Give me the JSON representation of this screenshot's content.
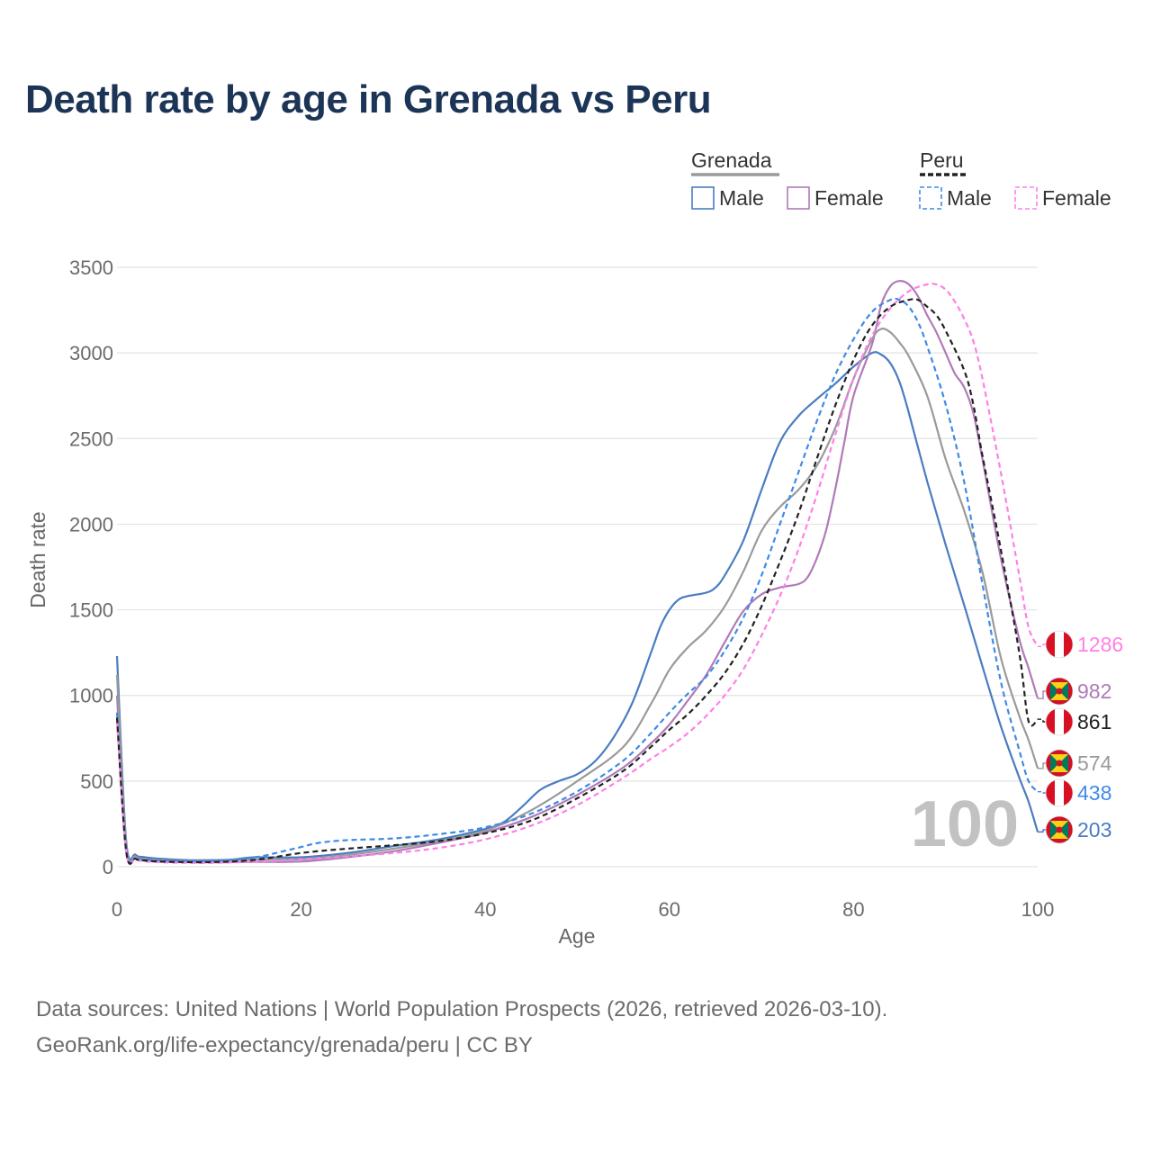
{
  "title": "Death rate by age in Grenada vs Peru",
  "footer": {
    "line1": "Data sources: United Nations | World Population Prospects (2026, retrieved 2026-03-10).",
    "line2": "GeoRank.org/life-expectancy/grenada/peru | CC BY"
  },
  "watermark": "100",
  "legend": {
    "groups": [
      {
        "label": "Grenada",
        "underline": "#9a9a9a",
        "dashed": false
      },
      {
        "label": "Peru",
        "underline": "#222222",
        "dashed": true
      }
    ],
    "entries": [
      {
        "label": "Male",
        "color": "#4a7cc2",
        "dashed": false
      },
      {
        "label": "Female",
        "color": "#b07ab8",
        "dashed": false
      },
      {
        "label": "Male",
        "color": "#3f8ae8",
        "dashed": true
      },
      {
        "label": "Female",
        "color": "#ff7fe8",
        "dashed": true
      }
    ]
  },
  "chart_data": {
    "type": "line",
    "xlabel": "Age",
    "ylabel": "Death rate",
    "xlim": [
      0,
      100
    ],
    "ylim": [
      0,
      3500
    ],
    "xticks": [
      0,
      20,
      40,
      60,
      80,
      100
    ],
    "yticks": [
      0,
      500,
      1000,
      1500,
      2000,
      2500,
      3000,
      3500
    ],
    "grid": true,
    "series": [
      {
        "name": "Grenada Male",
        "color": "#4a7cc2",
        "dashed": false,
        "end_label": "203",
        "flag": "grenada",
        "points": [
          [
            0,
            1230
          ],
          [
            1,
            150
          ],
          [
            2,
            70
          ],
          [
            3,
            55
          ],
          [
            5,
            45
          ],
          [
            8,
            38
          ],
          [
            12,
            40
          ],
          [
            15,
            55
          ],
          [
            20,
            55
          ],
          [
            25,
            80
          ],
          [
            30,
            120
          ],
          [
            35,
            160
          ],
          [
            40,
            220
          ],
          [
            42,
            260
          ],
          [
            44,
            350
          ],
          [
            46,
            450
          ],
          [
            48,
            500
          ],
          [
            50,
            540
          ],
          [
            52,
            620
          ],
          [
            54,
            760
          ],
          [
            56,
            960
          ],
          [
            58,
            1250
          ],
          [
            59,
            1400
          ],
          [
            60,
            1500
          ],
          [
            61,
            1560
          ],
          [
            62,
            1580
          ],
          [
            64,
            1600
          ],
          [
            65,
            1630
          ],
          [
            66,
            1700
          ],
          [
            68,
            1900
          ],
          [
            70,
            2200
          ],
          [
            72,
            2480
          ],
          [
            74,
            2630
          ],
          [
            76,
            2730
          ],
          [
            78,
            2820
          ],
          [
            80,
            2920
          ],
          [
            82,
            3000
          ],
          [
            83,
            2990
          ],
          [
            84,
            2940
          ],
          [
            85,
            2830
          ],
          [
            86,
            2650
          ],
          [
            88,
            2250
          ],
          [
            90,
            1880
          ],
          [
            92,
            1530
          ],
          [
            94,
            1170
          ],
          [
            96,
            820
          ],
          [
            98,
            520
          ],
          [
            99,
            380
          ],
          [
            100,
            203
          ]
        ]
      },
      {
        "name": "Grenada Female",
        "color": "#b07ab8",
        "dashed": false,
        "end_label": "982",
        "flag": "grenada",
        "points": [
          [
            0,
            1000
          ],
          [
            1,
            100
          ],
          [
            2,
            50
          ],
          [
            3,
            35
          ],
          [
            5,
            28
          ],
          [
            10,
            25
          ],
          [
            15,
            28
          ],
          [
            20,
            30
          ],
          [
            25,
            55
          ],
          [
            30,
            90
          ],
          [
            35,
            140
          ],
          [
            40,
            200
          ],
          [
            45,
            290
          ],
          [
            50,
            420
          ],
          [
            55,
            580
          ],
          [
            58,
            720
          ],
          [
            60,
            830
          ],
          [
            62,
            970
          ],
          [
            64,
            1120
          ],
          [
            66,
            1310
          ],
          [
            68,
            1490
          ],
          [
            70,
            1590
          ],
          [
            72,
            1630
          ],
          [
            74,
            1650
          ],
          [
            75,
            1690
          ],
          [
            76,
            1800
          ],
          [
            77,
            1960
          ],
          [
            78,
            2200
          ],
          [
            79,
            2480
          ],
          [
            80,
            2750
          ],
          [
            82,
            3050
          ],
          [
            83,
            3280
          ],
          [
            84,
            3390
          ],
          [
            85,
            3420
          ],
          [
            86,
            3400
          ],
          [
            87,
            3330
          ],
          [
            88,
            3220
          ],
          [
            89,
            3120
          ],
          [
            90,
            3000
          ],
          [
            91,
            2880
          ],
          [
            92,
            2800
          ],
          [
            93,
            2650
          ],
          [
            94,
            2380
          ],
          [
            96,
            1800
          ],
          [
            98,
            1330
          ],
          [
            99,
            1160
          ],
          [
            100,
            982
          ]
        ]
      },
      {
        "name": "Grenada Total",
        "color": "#9a9a9a",
        "dashed": false,
        "end_label": "574",
        "flag": "grenada",
        "points": [
          [
            0,
            1120
          ],
          [
            1,
            125
          ],
          [
            2,
            60
          ],
          [
            3,
            45
          ],
          [
            5,
            37
          ],
          [
            10,
            32
          ],
          [
            15,
            42
          ],
          [
            20,
            43
          ],
          [
            25,
            68
          ],
          [
            30,
            105
          ],
          [
            35,
            150
          ],
          [
            40,
            210
          ],
          [
            45,
            330
          ],
          [
            50,
            500
          ],
          [
            55,
            700
          ],
          [
            58,
            950
          ],
          [
            60,
            1150
          ],
          [
            62,
            1280
          ],
          [
            64,
            1380
          ],
          [
            66,
            1520
          ],
          [
            68,
            1720
          ],
          [
            70,
            1960
          ],
          [
            72,
            2100
          ],
          [
            74,
            2200
          ],
          [
            76,
            2340
          ],
          [
            78,
            2560
          ],
          [
            80,
            2850
          ],
          [
            82,
            3080
          ],
          [
            83,
            3140
          ],
          [
            84,
            3120
          ],
          [
            85,
            3060
          ],
          [
            86,
            2980
          ],
          [
            88,
            2750
          ],
          [
            90,
            2380
          ],
          [
            92,
            2080
          ],
          [
            94,
            1720
          ],
          [
            96,
            1220
          ],
          [
            98,
            880
          ],
          [
            99,
            740
          ],
          [
            100,
            574
          ]
        ]
      },
      {
        "name": "Peru Male",
        "color": "#3f8ae8",
        "dashed": true,
        "end_label": "438",
        "flag": "peru",
        "points": [
          [
            0,
            900
          ],
          [
            1,
            95
          ],
          [
            2,
            50
          ],
          [
            3,
            42
          ],
          [
            5,
            35
          ],
          [
            10,
            32
          ],
          [
            15,
            55
          ],
          [
            18,
            90
          ],
          [
            20,
            115
          ],
          [
            22,
            140
          ],
          [
            25,
            155
          ],
          [
            30,
            165
          ],
          [
            35,
            190
          ],
          [
            40,
            230
          ],
          [
            45,
            310
          ],
          [
            50,
            440
          ],
          [
            55,
            620
          ],
          [
            58,
            780
          ],
          [
            60,
            900
          ],
          [
            62,
            1010
          ],
          [
            64,
            1110
          ],
          [
            66,
            1260
          ],
          [
            68,
            1450
          ],
          [
            70,
            1700
          ],
          [
            72,
            2000
          ],
          [
            74,
            2300
          ],
          [
            76,
            2600
          ],
          [
            78,
            2870
          ],
          [
            80,
            3080
          ],
          [
            82,
            3240
          ],
          [
            84,
            3310
          ],
          [
            85,
            3310
          ],
          [
            86,
            3270
          ],
          [
            87,
            3180
          ],
          [
            88,
            3040
          ],
          [
            90,
            2700
          ],
          [
            92,
            2250
          ],
          [
            94,
            1650
          ],
          [
            96,
            1080
          ],
          [
            98,
            680
          ],
          [
            99,
            500
          ],
          [
            100,
            438
          ]
        ]
      },
      {
        "name": "Peru Female",
        "color": "#ff7fe8",
        "dashed": true,
        "end_label": "1286",
        "flag": "peru",
        "points": [
          [
            0,
            850
          ],
          [
            1,
            85
          ],
          [
            2,
            42
          ],
          [
            3,
            32
          ],
          [
            5,
            25
          ],
          [
            10,
            22
          ],
          [
            15,
            30
          ],
          [
            20,
            42
          ],
          [
            25,
            60
          ],
          [
            30,
            80
          ],
          [
            35,
            110
          ],
          [
            40,
            160
          ],
          [
            45,
            240
          ],
          [
            50,
            360
          ],
          [
            55,
            520
          ],
          [
            58,
            630
          ],
          [
            60,
            700
          ],
          [
            62,
            780
          ],
          [
            64,
            880
          ],
          [
            66,
            1000
          ],
          [
            68,
            1150
          ],
          [
            70,
            1350
          ],
          [
            72,
            1580
          ],
          [
            74,
            1850
          ],
          [
            76,
            2170
          ],
          [
            78,
            2520
          ],
          [
            80,
            2850
          ],
          [
            82,
            3100
          ],
          [
            84,
            3260
          ],
          [
            86,
            3360
          ],
          [
            88,
            3400
          ],
          [
            89,
            3400
          ],
          [
            90,
            3370
          ],
          [
            91,
            3300
          ],
          [
            92,
            3200
          ],
          [
            93,
            3070
          ],
          [
            94,
            2850
          ],
          [
            96,
            2300
          ],
          [
            98,
            1700
          ],
          [
            99,
            1400
          ],
          [
            100,
            1286
          ]
        ]
      },
      {
        "name": "Peru Total",
        "color": "#222222",
        "dashed": true,
        "end_label": "861",
        "flag": "peru",
        "points": [
          [
            0,
            870
          ],
          [
            1,
            90
          ],
          [
            2,
            46
          ],
          [
            3,
            37
          ],
          [
            5,
            30
          ],
          [
            10,
            27
          ],
          [
            15,
            40
          ],
          [
            20,
            80
          ],
          [
            25,
            105
          ],
          [
            30,
            125
          ],
          [
            35,
            150
          ],
          [
            40,
            195
          ],
          [
            45,
            270
          ],
          [
            50,
            400
          ],
          [
            55,
            560
          ],
          [
            58,
            700
          ],
          [
            60,
            800
          ],
          [
            62,
            890
          ],
          [
            64,
            1000
          ],
          [
            66,
            1130
          ],
          [
            68,
            1300
          ],
          [
            70,
            1520
          ],
          [
            72,
            1780
          ],
          [
            74,
            2060
          ],
          [
            76,
            2380
          ],
          [
            78,
            2690
          ],
          [
            80,
            2960
          ],
          [
            82,
            3160
          ],
          [
            84,
            3270
          ],
          [
            86,
            3310
          ],
          [
            87,
            3310
          ],
          [
            88,
            3270
          ],
          [
            89,
            3220
          ],
          [
            90,
            3130
          ],
          [
            92,
            2900
          ],
          [
            93,
            2700
          ],
          [
            94,
            2400
          ],
          [
            96,
            1850
          ],
          [
            98,
            1250
          ],
          [
            99,
            850
          ],
          [
            100,
            861
          ]
        ]
      }
    ]
  }
}
